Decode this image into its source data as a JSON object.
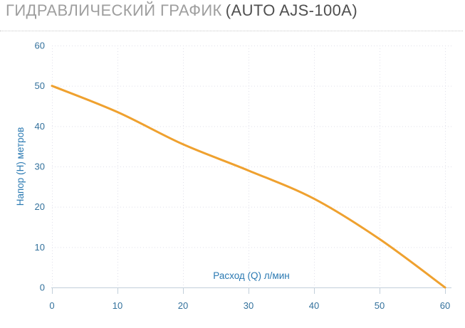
{
  "page_title": {
    "main": "ГИДРАВЛИЧЕСКИЙ ГРАФИК",
    "model": "(AUTO AJS-100A)"
  },
  "chart_data": {
    "type": "line",
    "title": "ГИДРАВЛИЧЕСКИЙ ГРАФИК (AUTO AJS-100A)",
    "xlabel": "Расход (Q) л/мин",
    "ylabel": "Напор (H) метров",
    "x": [
      0,
      10,
      20,
      30,
      40,
      50,
      60
    ],
    "values": [
      50,
      43.5,
      35.5,
      29,
      22,
      12,
      0
    ],
    "xlim": [
      0,
      60
    ],
    "ylim": [
      0,
      60
    ],
    "xticks": [
      0,
      10,
      20,
      30,
      40,
      50,
      60
    ],
    "yticks": [
      0,
      10,
      20,
      30,
      40,
      50,
      60
    ],
    "grid": true,
    "grid_style": "dotted",
    "legend": "none",
    "smooth": true
  },
  "colors": {
    "series_line": "#efa12f",
    "tick_label": "#33719c",
    "axis_title": "#2a79b2",
    "grid_line": "#e0e0ea",
    "axis_line": "#c2cfda",
    "title_main": "#9e9e9e",
    "title_model": "#4f4f4f",
    "separator": "#c9c9c9",
    "background": "#ffffff"
  }
}
